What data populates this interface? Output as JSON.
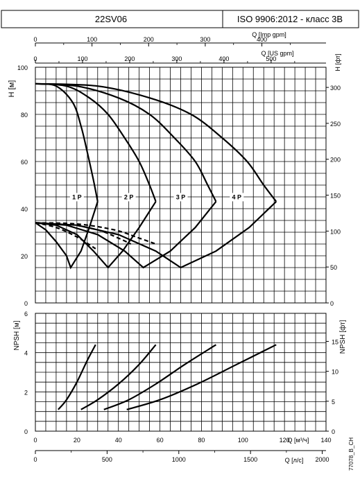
{
  "header": {
    "model": "22SV06",
    "standard": "ISO 9906:2012 - класс 3B"
  },
  "side_code": "77078_B_CH",
  "top_axes": {
    "imp_label": "Q [Imp gpm]",
    "imp_ticks": [
      "0",
      "100",
      "200",
      "300",
      "400"
    ],
    "us_label": "Q [US gpm]",
    "us_ticks": [
      "0",
      "100",
      "200",
      "300",
      "400",
      "500"
    ]
  },
  "bottom_axes": {
    "m3h_label": "Q [м³/ч]",
    "m3h_ticks": [
      "0",
      "20",
      "40",
      "60",
      "80",
      "100",
      "120",
      "140"
    ],
    "ls_label": "Q [л/с]",
    "ls_ticks": [
      "0",
      "500",
      "1000",
      "1500",
      "2000"
    ]
  },
  "chart_data": [
    {
      "type": "line",
      "title": "",
      "xlabel": "Q [м³/ч]",
      "ylabel": "H [м]",
      "y2label": "H [фт]",
      "xlim": [
        0,
        140
      ],
      "ylim": [
        0,
        100
      ],
      "y_ticks": [
        "0",
        "20",
        "40",
        "60",
        "80",
        "100"
      ],
      "y2_ticks": [
        "0",
        "50",
        "100",
        "150",
        "200",
        "250",
        "300"
      ],
      "grid": true,
      "curve_labels": [
        "1 P",
        "2 P",
        "3 P",
        "4 P"
      ],
      "head_curves": [
        {
          "name": "1 P",
          "x": [
            0,
            10,
            18,
            22,
            25,
            28,
            30
          ],
          "y": [
            93,
            92,
            85,
            75,
            64,
            52,
            43
          ]
        },
        {
          "name": "2 P",
          "x": [
            0,
            15,
            26,
            35,
            43,
            50,
            55,
            58
          ],
          "y": [
            93,
            92,
            87,
            80,
            70,
            60,
            50,
            43
          ]
        },
        {
          "name": "3 P",
          "x": [
            0,
            20,
            40,
            55,
            67,
            77,
            83,
            87
          ],
          "y": [
            93,
            92,
            87,
            80,
            70,
            60,
            50,
            43
          ]
        },
        {
          "name": "4 P",
          "x": [
            0,
            30,
            55,
            75,
            90,
            102,
            110,
            116
          ],
          "y": [
            93,
            92,
            87,
            80,
            70,
            60,
            50,
            43
          ]
        }
      ],
      "efficiency_curves": [
        {
          "x": [
            0,
            5,
            10,
            15,
            17,
            22,
            26,
            30
          ],
          "y": [
            34,
            31,
            26,
            20,
            15,
            22,
            32,
            43
          ]
        },
        {
          "x": [
            0,
            10,
            20,
            28,
            35,
            42,
            50,
            58
          ],
          "y": [
            34,
            33,
            29,
            22,
            15,
            22,
            32,
            43
          ]
        },
        {
          "x": [
            0,
            15,
            30,
            43,
            52,
            65,
            77,
            87
          ],
          "y": [
            34,
            33,
            29,
            22,
            15,
            22,
            32,
            43
          ]
        },
        {
          "x": [
            0,
            20,
            40,
            58,
            70,
            87,
            103,
            116
          ],
          "y": [
            34,
            33,
            29,
            22,
            15,
            22,
            32,
            43
          ]
        }
      ],
      "dashed_curves": [
        {
          "x": [
            0,
            10,
            20,
            29
          ],
          "y": [
            34,
            32,
            28,
            23
          ]
        },
        {
          "x": [
            0,
            15,
            30,
            40,
            46
          ],
          "y": [
            34,
            33.5,
            31,
            27.5,
            25
          ]
        },
        {
          "x": [
            0,
            20,
            38,
            50,
            58
          ],
          "y": [
            34,
            33.5,
            31,
            27.5,
            25
          ]
        }
      ]
    },
    {
      "type": "line",
      "title": "",
      "xlabel": "Q [м³/ч]",
      "ylabel": "NPSH [м]",
      "y2label": "NPSH [фт]",
      "xlim": [
        0,
        140
      ],
      "ylim": [
        0,
        6
      ],
      "y_ticks": [
        "0",
        "2",
        "4",
        "6"
      ],
      "y2_ticks": [
        "0",
        "5",
        "10",
        "15"
      ],
      "grid": true,
      "series": [
        {
          "x": [
            11,
            15,
            20,
            25,
            29
          ],
          "y": [
            1.1,
            1.6,
            2.5,
            3.6,
            4.4
          ]
        },
        {
          "x": [
            22,
            30,
            40,
            50,
            58
          ],
          "y": [
            1.1,
            1.6,
            2.4,
            3.4,
            4.4
          ]
        },
        {
          "x": [
            33,
            45,
            58,
            72,
            87
          ],
          "y": [
            1.1,
            1.6,
            2.4,
            3.4,
            4.4
          ]
        },
        {
          "x": [
            44,
            60,
            78,
            97,
            116
          ],
          "y": [
            1.1,
            1.6,
            2.4,
            3.4,
            4.4
          ]
        }
      ]
    }
  ]
}
